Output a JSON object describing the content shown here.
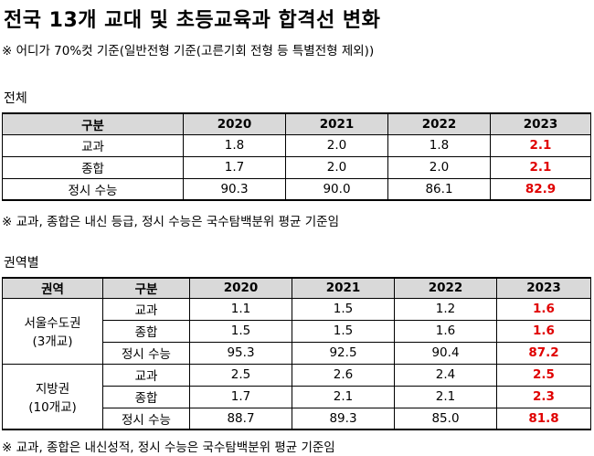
{
  "title": "전국 13개 교대 및 초등교육과 합격선 변화",
  "note_top": "※ 어디가 70%컷 기준(일반전형 기준(고른기회 전형 등 특별전형 제외))",
  "section_total": "전체",
  "total_table": {
    "headers": [
      "구분",
      "2020",
      "2021",
      "2022",
      "2023"
    ],
    "rows": [
      {
        "label": "교과",
        "values": [
          "1.8",
          "2.0",
          "1.8",
          "2.1"
        ]
      },
      {
        "label": "종합",
        "values": [
          "1.7",
          "2.0",
          "2.0",
          "2.1"
        ]
      },
      {
        "label": "정시 수능",
        "values": [
          "90.3",
          "90.0",
          "86.1",
          "82.9"
        ]
      }
    ]
  },
  "note_mid": "※ 교과, 종합은 내신 등급, 정시 수능은 국수탐백분위 평균 기준임",
  "section_region": "권역별",
  "region_table": {
    "headers": [
      "권역",
      "구분",
      "2020",
      "2021",
      "2022",
      "2023"
    ],
    "groups": [
      {
        "region": "서울수도권",
        "sub": "(3개교)",
        "rows": [
          {
            "label": "교과",
            "values": [
              "1.1",
              "1.5",
              "1.2",
              "1.6"
            ]
          },
          {
            "label": "종합",
            "values": [
              "1.5",
              "1.5",
              "1.6",
              "1.6"
            ]
          },
          {
            "label": "정시 수능",
            "values": [
              "95.3",
              "92.5",
              "90.4",
              "87.2"
            ]
          }
        ]
      },
      {
        "region": "지방권",
        "sub": "(10개교)",
        "rows": [
          {
            "label": "교과",
            "values": [
              "2.5",
              "2.6",
              "2.4",
              "2.5"
            ]
          },
          {
            "label": "종합",
            "values": [
              "1.7",
              "2.1",
              "2.1",
              "2.3"
            ]
          },
          {
            "label": "정시 수능",
            "values": [
              "88.7",
              "89.3",
              "85.0",
              "81.8"
            ]
          }
        ]
      }
    ]
  },
  "note_bottom": "※ 교과, 종합은 내신성적, 정시 수능은 국수탐백분위 평균 기준임",
  "colors": {
    "highlight": "#e00000",
    "header_bg": "#d9d9d9"
  }
}
